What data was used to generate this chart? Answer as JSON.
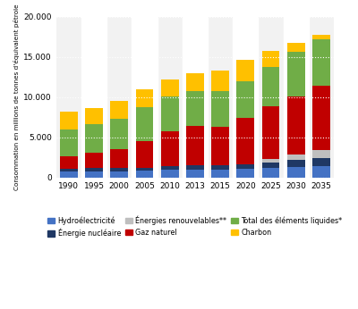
{
  "years": [
    1990,
    1995,
    2000,
    2005,
    2010,
    2013,
    2015,
    2020,
    2025,
    2030,
    2035
  ],
  "hydroelectricite": [
    800,
    800,
    800,
    900,
    1000,
    1000,
    1000,
    1100,
    1200,
    1300,
    1450
  ],
  "energie_nucleaire": [
    300,
    350,
    350,
    350,
    400,
    500,
    500,
    600,
    700,
    900,
    1000
  ],
  "energies_renouvelables": [
    0,
    0,
    0,
    0,
    0,
    0,
    0,
    0,
    400,
    700,
    1000
  ],
  "gaz_naturel": [
    1600,
    1900,
    2400,
    3300,
    4400,
    4900,
    4800,
    5700,
    6500,
    7200,
    8000
  ],
  "total_elements_liquides": [
    3300,
    3600,
    3700,
    4200,
    4300,
    4300,
    4400,
    4600,
    4900,
    5500,
    5700
  ],
  "charbon": [
    2200,
    1950,
    2250,
    2250,
    2100,
    2300,
    2600,
    2600,
    2000,
    1100,
    550
  ],
  "colors": {
    "hydroelectricite": "#4472C4",
    "energie_nucleaire": "#1F3864",
    "energies_renouvelables": "#BFBFBF",
    "gaz_naturel": "#C00000",
    "total_elements_liquides": "#70AD47",
    "charbon": "#FFC000"
  },
  "legend_labels": [
    "Hydroélectricité",
    "Énergie nucléaire",
    "Énergies renouvelables**",
    "Gaz naturel",
    "Total des éléments liquides*",
    "Charbon"
  ],
  "ylabel": "Consommation en millions de tonnes d'équivalent pétrole",
  "ylim": [
    0,
    20000
  ],
  "yticks": [
    0,
    5000,
    10000,
    15000,
    20000
  ],
  "ytick_labels": [
    "0",
    "5.000",
    "10.000",
    "15.000",
    "20.000"
  ],
  "background_color": "#FFFFFF",
  "plot_bg_color": "#F2F2F2",
  "alt_col_color": "#FFFFFF",
  "grid_color": "#FFFFFF",
  "bar_width": 0.7
}
